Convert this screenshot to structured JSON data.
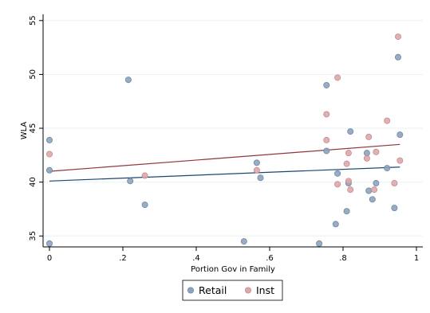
{
  "chart_data": {
    "type": "scatter",
    "xlabel": "Portion Gov in Family",
    "ylabel": "WLA",
    "xlim": [
      0,
      1
    ],
    "ylim": [
      35,
      55
    ],
    "x_ticks": [
      0,
      0.2,
      0.4,
      0.6,
      0.8,
      1
    ],
    "x_tick_labels": [
      "0",
      ".2",
      ".4",
      ".6",
      ".8",
      "1"
    ],
    "y_ticks": [
      35,
      40,
      45,
      50,
      55
    ],
    "y_tick_labels": [
      "35",
      "40",
      "45",
      "50",
      "55"
    ],
    "grid": "horizontal",
    "legend_position": "bottom",
    "series": [
      {
        "name": "Retail",
        "color": "#8da4bd",
        "edge": "#6e87a4",
        "fit_color": "#1a476f",
        "points": [
          [
            0.0,
            43.9
          ],
          [
            0.0,
            41.1
          ],
          [
            0.0,
            34.3
          ],
          [
            0.215,
            49.5
          ],
          [
            0.22,
            40.1
          ],
          [
            0.26,
            37.9
          ],
          [
            0.53,
            34.5
          ],
          [
            0.565,
            41.8
          ],
          [
            0.575,
            40.4
          ],
          [
            0.735,
            34.3
          ],
          [
            0.755,
            49.0
          ],
          [
            0.755,
            42.9
          ],
          [
            0.78,
            36.1
          ],
          [
            0.785,
            40.8
          ],
          [
            0.81,
            37.3
          ],
          [
            0.815,
            39.9
          ],
          [
            0.82,
            44.7
          ],
          [
            0.865,
            42.7
          ],
          [
            0.87,
            39.2
          ],
          [
            0.88,
            38.4
          ],
          [
            0.89,
            39.9
          ],
          [
            0.92,
            41.3
          ],
          [
            0.94,
            37.6
          ],
          [
            0.95,
            51.6
          ],
          [
            0.955,
            44.4
          ]
        ],
        "fit": [
          [
            0.0,
            40.1
          ],
          [
            0.955,
            41.4
          ]
        ]
      },
      {
        "name": "Inst",
        "color": "#dba8ab",
        "edge": "#c88a8f",
        "fit_color": "#90353b",
        "points": [
          [
            0.0,
            42.6
          ],
          [
            0.26,
            40.6
          ],
          [
            0.565,
            41.1
          ],
          [
            0.755,
            46.3
          ],
          [
            0.755,
            43.9
          ],
          [
            0.785,
            49.7
          ],
          [
            0.785,
            39.8
          ],
          [
            0.81,
            41.7
          ],
          [
            0.815,
            42.7
          ],
          [
            0.815,
            40.1
          ],
          [
            0.82,
            39.3
          ],
          [
            0.865,
            42.2
          ],
          [
            0.87,
            44.2
          ],
          [
            0.885,
            39.3
          ],
          [
            0.89,
            42.8
          ],
          [
            0.92,
            45.7
          ],
          [
            0.94,
            39.9
          ],
          [
            0.95,
            53.5
          ],
          [
            0.955,
            42.0
          ]
        ],
        "fit": [
          [
            0.0,
            41.0
          ],
          [
            0.955,
            43.5
          ]
        ]
      }
    ]
  }
}
